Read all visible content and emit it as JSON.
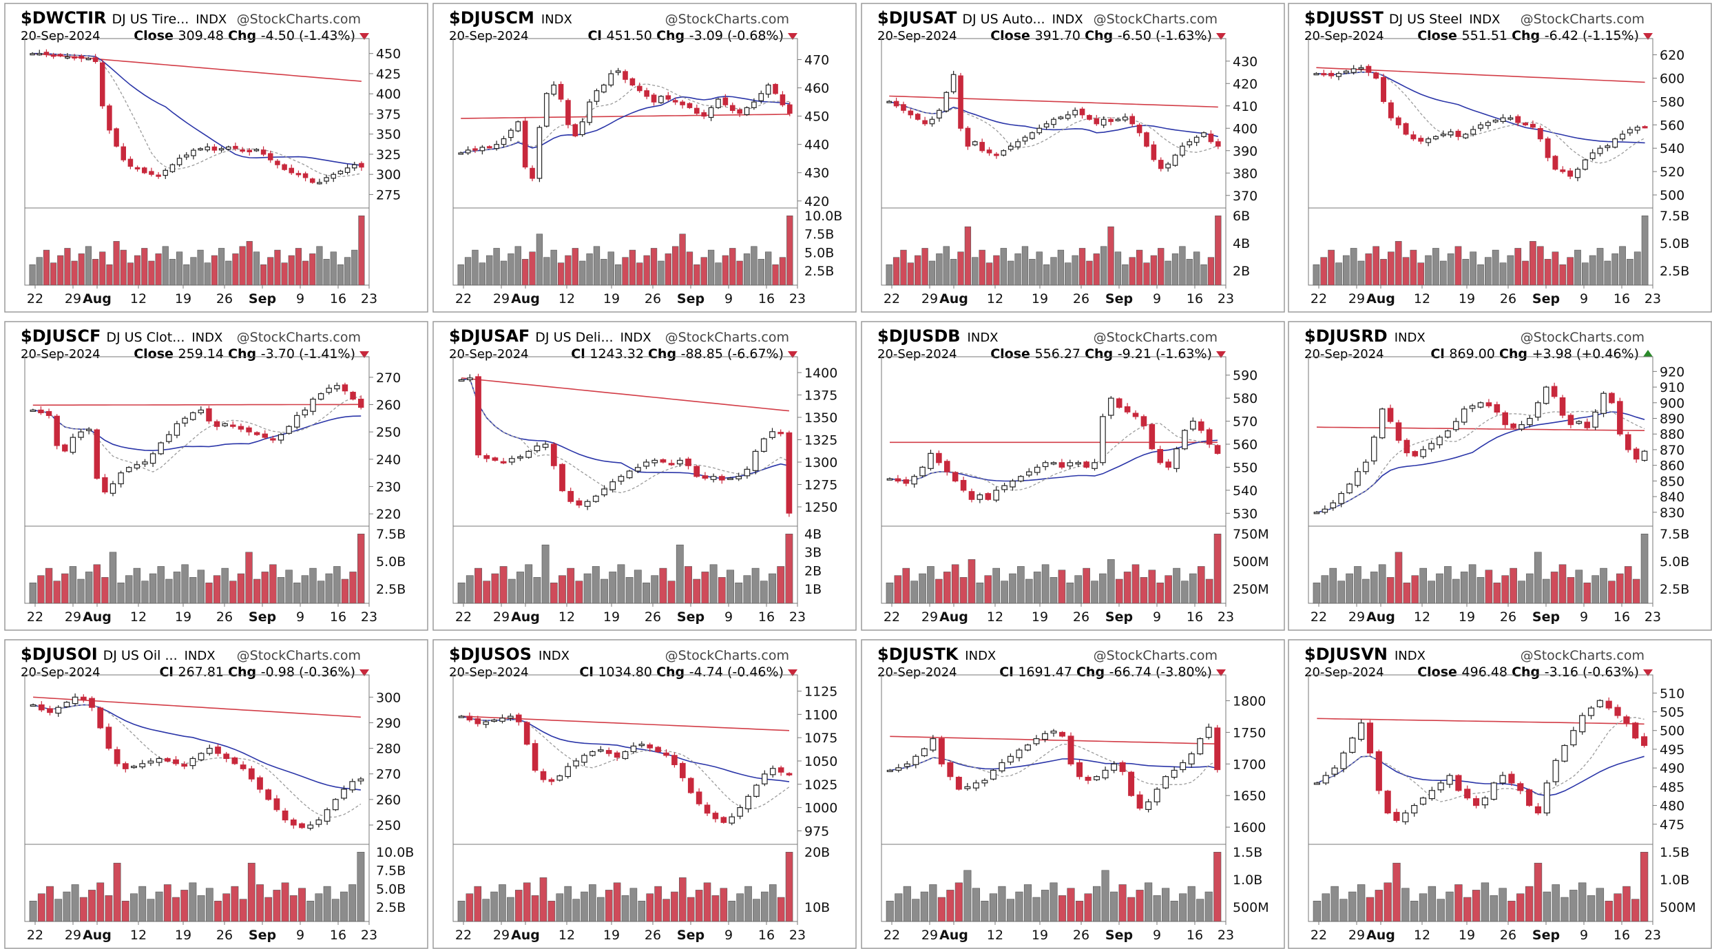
{
  "panels": [
    {
      "symbol": "$DWCTIR",
      "name": "DJ US Tire...",
      "type": "INDX",
      "brand": "@StockCharts.com",
      "date": "20-Sep-2024",
      "close_label": "Close",
      "close": "309.48",
      "chg_label": "Chg",
      "chg": "-4.50 (-1.43%)",
      "direction": "down",
      "price_ticks": [
        "450",
        "425",
        "400",
        "375",
        "350",
        "325",
        "300",
        "275"
      ],
      "volume_ticks": [],
      "x_ticks": [
        "22",
        "29",
        "Aug",
        "12",
        "19",
        "26",
        "Sep",
        "9",
        "16",
        "23"
      ],
      "chart_data": {
        "type": "candlestick",
        "ylim": [
          260,
          460
        ],
        "close_series": [
          450,
          450,
          449,
          448,
          447,
          446,
          445,
          444,
          444,
          440,
          385,
          355,
          335,
          318,
          310,
          308,
          302,
          300,
          298,
          305,
          312,
          320,
          324,
          330,
          332,
          334,
          330,
          332,
          334,
          332,
          330,
          328,
          331,
          325,
          318,
          312,
          306,
          302,
          300,
          296,
          290,
          290,
          296,
          300,
          304,
          308,
          312,
          309
        ]
      }
    },
    {
      "symbol": "$DJUSCM",
      "name": "",
      "type": "INDX",
      "brand": "@StockCharts.com",
      "date": "20-Sep-2024",
      "close_label": "Cl",
      "close": "451.50",
      "chg_label": "Chg",
      "chg": "-3.09 (-0.68%)",
      "direction": "down",
      "price_ticks": [
        "470",
        "460",
        "450",
        "440",
        "430",
        "420"
      ],
      "volume_ticks": [
        "10.0B",
        "7.5B",
        "5.0B",
        "2.5B"
      ],
      "x_ticks": [
        "22",
        "29",
        "Aug",
        "12",
        "19",
        "26",
        "Sep",
        "9",
        "16",
        "23"
      ],
      "chart_data": {
        "type": "candlestick",
        "ylim": [
          418,
          475
        ],
        "close_series": [
          437,
          438,
          438,
          439,
          439,
          440,
          442,
          445,
          448,
          432,
          428,
          446,
          458,
          461,
          456,
          447,
          443,
          448,
          455,
          459,
          461,
          465,
          466,
          463,
          461,
          459,
          457,
          455,
          457,
          456,
          455,
          454,
          453,
          451,
          450,
          453,
          456,
          454,
          452,
          451,
          453,
          455,
          458,
          461,
          458,
          454,
          451
        ]
      }
    },
    {
      "symbol": "$DJUSAT",
      "name": "DJ US Auto...",
      "type": "INDX",
      "brand": "@StockCharts.com",
      "date": "20-Sep-2024",
      "close_label": "Close",
      "close": "391.70",
      "chg_label": "Chg",
      "chg": "-6.50 (-1.63%)",
      "direction": "down",
      "price_ticks": [
        "430",
        "420",
        "410",
        "400",
        "390",
        "380",
        "370"
      ],
      "volume_ticks": [
        "6B",
        "4B",
        "2B"
      ],
      "x_ticks": [
        "22",
        "29",
        "Aug",
        "12",
        "19",
        "26",
        "Sep",
        "9",
        "16",
        "23"
      ],
      "chart_data": {
        "type": "candlestick",
        "ylim": [
          365,
          437
        ],
        "close_series": [
          412,
          410,
          408,
          406,
          404,
          402,
          404,
          408,
          416,
          424,
          400,
          392,
          394,
          390,
          389,
          388,
          390,
          392,
          394,
          396,
          398,
          400,
          402,
          404,
          405,
          406,
          408,
          406,
          404,
          402,
          404,
          403,
          404,
          405,
          402,
          398,
          392,
          386,
          382,
          384,
          388,
          392,
          394,
          396,
          398,
          394,
          392
        ]
      }
    },
    {
      "symbol": "$DJUSST",
      "name": "DJ US Steel",
      "type": "INDX",
      "brand": "@StockCharts.com",
      "date": "20-Sep-2024",
      "close_label": "Close",
      "close": "551.51",
      "chg_label": "Chg",
      "chg": "-6.42 (-1.15%)",
      "direction": "down",
      "price_ticks": [
        "620",
        "600",
        "580",
        "560",
        "540",
        "520",
        "500"
      ],
      "volume_ticks": [
        "7.5B",
        "5.0B",
        "2.5B"
      ],
      "x_ticks": [
        "22",
        "29",
        "Aug",
        "12",
        "19",
        "26",
        "Sep",
        "9",
        "16",
        "23"
      ],
      "chart_data": {
        "type": "candlestick",
        "ylim": [
          490,
          628
        ],
        "close_series": [
          604,
          603,
          602,
          604,
          606,
          608,
          609,
          605,
          600,
          580,
          566,
          560,
          552,
          548,
          546,
          548,
          550,
          552,
          554,
          550,
          552,
          556,
          560,
          562,
          564,
          566,
          566,
          562,
          560,
          558,
          548,
          532,
          522,
          520,
          516,
          522,
          530,
          536,
          540,
          542,
          548,
          552,
          556,
          558,
          558
        ]
      }
    },
    {
      "symbol": "$DJUSCF",
      "name": "DJ US Clot...",
      "type": "INDX",
      "brand": "@StockCharts.com",
      "date": "20-Sep-2024",
      "close_label": "Close",
      "close": "259.14",
      "chg_label": "Chg",
      "chg": "-3.70 (-1.41%)",
      "direction": "down",
      "price_ticks": [
        "270",
        "260",
        "250",
        "240",
        "230",
        "220"
      ],
      "volume_ticks": [
        "7.5B",
        "5.0B",
        "2.5B"
      ],
      "x_ticks": [
        "22",
        "29",
        "Aug",
        "12",
        "19",
        "26",
        "Sep",
        "9",
        "16",
        "23"
      ],
      "chart_data": {
        "type": "candlestick",
        "ylim": [
          216,
          275
        ],
        "close_series": [
          258,
          257,
          256,
          245,
          243,
          248,
          250,
          251,
          233,
          228,
          231,
          235,
          237,
          238,
          239,
          242,
          246,
          249,
          253,
          255,
          257,
          258,
          254,
          252,
          253,
          252,
          251,
          250,
          249,
          248,
          247,
          249,
          252,
          256,
          258,
          262,
          264,
          266,
          267,
          265,
          262,
          259
        ]
      }
    },
    {
      "symbol": "$DJUSAF",
      "name": "DJ US Deli...",
      "type": "INDX",
      "brand": "@StockCharts.com",
      "date": "20-Sep-2024",
      "close_label": "Cl",
      "close": "1243.32",
      "chg_label": "Chg",
      "chg": "-88.85 (-6.67%)",
      "direction": "down",
      "price_ticks": [
        "1400",
        "1375",
        "1350",
        "1325",
        "1300",
        "1275",
        "1250"
      ],
      "volume_ticks": [
        "4B",
        "3B",
        "2B",
        "1B"
      ],
      "x_ticks": [
        "22",
        "29",
        "Aug",
        "12",
        "19",
        "26",
        "Sep",
        "9",
        "16",
        "23"
      ],
      "chart_data": {
        "type": "candlestick",
        "ylim": [
          1230,
          1410
        ],
        "close_series": [
          1392,
          1394,
          1308,
          1304,
          1302,
          1300,
          1304,
          1306,
          1312,
          1318,
          1320,
          1296,
          1268,
          1256,
          1252,
          1256,
          1262,
          1270,
          1278,
          1284,
          1290,
          1294,
          1300,
          1302,
          1300,
          1298,
          1302,
          1296,
          1284,
          1282,
          1284,
          1280,
          1282,
          1284,
          1292,
          1312,
          1326,
          1334,
          1332,
          1243
        ]
      }
    },
    {
      "symbol": "$DJUSDB",
      "name": "",
      "type": "INDX",
      "brand": "@StockCharts.com",
      "date": "20-Sep-2024",
      "close_label": "Close",
      "close": "556.27",
      "chg_label": "Chg",
      "chg": "-9.21 (-1.63%)",
      "direction": "down",
      "price_ticks": [
        "590",
        "580",
        "570",
        "560",
        "550",
        "540",
        "530"
      ],
      "volume_ticks": [
        "750M",
        "500M",
        "250M"
      ],
      "x_ticks": [
        "22",
        "29",
        "Aug",
        "12",
        "19",
        "26",
        "Sep",
        "9",
        "16",
        "23"
      ],
      "chart_data": {
        "type": "candlestick",
        "ylim": [
          525,
          595
        ],
        "close_series": [
          545,
          544,
          543,
          546,
          550,
          556,
          552,
          548,
          544,
          540,
          536,
          538,
          536,
          540,
          542,
          544,
          546,
          548,
          550,
          552,
          552,
          550,
          552,
          552,
          550,
          552,
          572,
          580,
          576,
          574,
          572,
          568,
          558,
          552,
          550,
          558,
          566,
          570,
          566,
          560,
          556
        ]
      }
    },
    {
      "symbol": "$DJUSRD",
      "name": "",
      "type": "INDX",
      "brand": "@StockCharts.com",
      "date": "20-Sep-2024",
      "close_label": "Cl",
      "close": "869.00",
      "chg_label": "Chg",
      "chg": "+3.98 (+0.46%)",
      "direction": "up",
      "price_ticks": [
        "920",
        "910",
        "900",
        "890",
        "880",
        "870",
        "860",
        "850",
        "840",
        "830"
      ],
      "volume_ticks": [
        "7.5B",
        "5.0B",
        "2.5B"
      ],
      "x_ticks": [
        "22",
        "29",
        "Aug",
        "12",
        "19",
        "26",
        "Sep",
        "9",
        "16",
        "23"
      ],
      "chart_data": {
        "type": "candlestick",
        "ylim": [
          822,
          925
        ],
        "close_series": [
          830,
          832,
          836,
          842,
          848,
          856,
          862,
          878,
          896,
          888,
          876,
          868,
          866,
          870,
          874,
          878,
          882,
          888,
          896,
          898,
          900,
          898,
          894,
          886,
          884,
          886,
          890,
          900,
          910,
          904,
          892,
          886,
          888,
          884,
          894,
          906,
          900,
          880,
          870,
          864,
          869
        ]
      }
    },
    {
      "symbol": "$DJUSOI",
      "name": "DJ US Oil ...",
      "type": "INDX",
      "brand": "@StockCharts.com",
      "date": "20-Sep-2024",
      "close_label": "Cl",
      "close": "267.81",
      "chg_label": "Chg",
      "chg": "-0.98 (-0.36%)",
      "direction": "down",
      "price_ticks": [
        "300",
        "290",
        "280",
        "270",
        "260",
        "250"
      ],
      "volume_ticks": [
        "10.0B",
        "7.5B",
        "5.0B",
        "2.5B"
      ],
      "x_ticks": [
        "22",
        "29",
        "Aug",
        "12",
        "19",
        "26",
        "Sep",
        "9",
        "16",
        "23"
      ],
      "chart_data": {
        "type": "candlestick",
        "ylim": [
          243,
          306
        ],
        "close_series": [
          297,
          295,
          294,
          296,
          298,
          300,
          299,
          296,
          288,
          280,
          274,
          272,
          273,
          274,
          275,
          276,
          275,
          274,
          273,
          276,
          278,
          280,
          278,
          276,
          274,
          272,
          268,
          264,
          260,
          256,
          252,
          250,
          249,
          250,
          252,
          256,
          260,
          264,
          267,
          268
        ]
      }
    },
    {
      "symbol": "$DJUSOS",
      "name": "",
      "type": "INDX",
      "brand": "@StockCharts.com",
      "date": "20-Sep-2024",
      "close_label": "Cl",
      "close": "1034.80",
      "chg_label": "Chg",
      "chg": "-4.74 (-0.46%)",
      "direction": "down",
      "price_ticks": [
        "1125",
        "1100",
        "1075",
        "1050",
        "1025",
        "1000",
        "975"
      ],
      "volume_ticks": [
        "20B",
        "10B"
      ],
      "x_ticks": [
        "22",
        "29",
        "Aug",
        "12",
        "19",
        "26",
        "Sep",
        "9",
        "16",
        "23"
      ],
      "chart_data": {
        "type": "candlestick",
        "ylim": [
          962,
          1135
        ],
        "close_series": [
          1098,
          1094,
          1090,
          1092,
          1094,
          1096,
          1098,
          1092,
          1068,
          1040,
          1030,
          1028,
          1034,
          1044,
          1050,
          1056,
          1060,
          1062,
          1058,
          1054,
          1060,
          1066,
          1068,
          1064,
          1060,
          1056,
          1046,
          1032,
          1016,
          1004,
          994,
          988,
          984,
          990,
          1000,
          1012,
          1024,
          1036,
          1042,
          1038,
          1035
        ]
      }
    },
    {
      "symbol": "$DJUSTK",
      "name": "",
      "type": "INDX",
      "brand": "@StockCharts.com",
      "date": "20-Sep-2024",
      "close_label": "Cl",
      "close": "1691.47",
      "chg_label": "Chg",
      "chg": "-66.74 (-3.80%)",
      "direction": "down",
      "price_ticks": [
        "1800",
        "1750",
        "1700",
        "1650",
        "1600"
      ],
      "volume_ticks": [
        "1.5B",
        "1.0B",
        "500M"
      ],
      "x_ticks": [
        "22",
        "29",
        "Aug",
        "12",
        "19",
        "26",
        "Sep",
        "9",
        "16",
        "23"
      ],
      "chart_data": {
        "type": "candlestick",
        "ylim": [
          1575,
          1830
        ],
        "close_series": [
          1690,
          1694,
          1700,
          1712,
          1724,
          1740,
          1700,
          1680,
          1660,
          1664,
          1670,
          1674,
          1690,
          1702,
          1712,
          1722,
          1730,
          1740,
          1748,
          1752,
          1744,
          1700,
          1680,
          1674,
          1680,
          1690,
          1700,
          1688,
          1650,
          1630,
          1640,
          1660,
          1680,
          1690,
          1702,
          1716,
          1740,
          1758,
          1691
        ]
      }
    },
    {
      "symbol": "$DJUSVN",
      "name": "",
      "type": "INDX",
      "brand": "@StockCharts.com",
      "date": "20-Sep-2024",
      "close_label": "Close",
      "close": "496.48",
      "chg_label": "Chg",
      "chg": "-3.16 (-0.63%)",
      "direction": "down",
      "price_ticks": [
        "510",
        "505",
        "500",
        "495",
        "490",
        "485",
        "480",
        "475"
      ],
      "volume_ticks": [
        "1.5B",
        "1.0B",
        "500M"
      ],
      "x_ticks": [
        "22",
        "29",
        "Aug",
        "12",
        "19",
        "26",
        "Sep",
        "9",
        "16",
        "23"
      ],
      "chart_data": {
        "type": "candlestick",
        "ylim": [
          470,
          513
        ],
        "close_series": [
          486,
          488,
          490,
          494,
          498,
          502,
          494,
          484,
          478,
          476,
          478,
          480,
          482,
          484,
          486,
          488,
          484,
          482,
          480,
          482,
          486,
          488,
          486,
          484,
          480,
          478,
          486,
          492,
          496,
          500,
          504,
          506,
          508,
          506,
          504,
          502,
          498,
          496
        ]
      }
    }
  ]
}
